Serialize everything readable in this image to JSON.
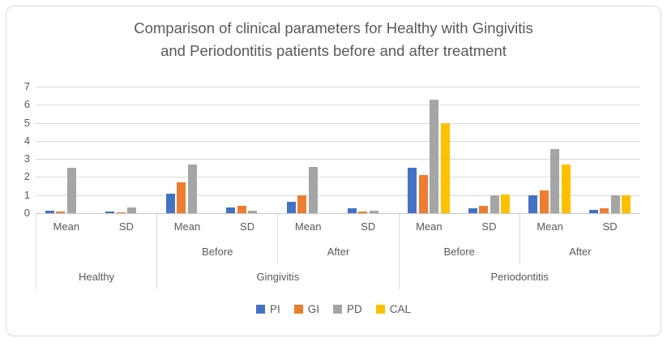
{
  "title_lines": [
    "Comparison of clinical parameters for Healthy with Gingivitis",
    "and Periodontitis patients before and after treatment"
  ],
  "chart_data": {
    "type": "bar",
    "title": "Comparison of clinical parameters for Healthy with Gingivitis and Periodontitis patients before and after treatment",
    "xlabel": "",
    "ylabel": "",
    "y_axis": {
      "min": 0,
      "max": 7,
      "tick_step": 1,
      "tick_labels": [
        "0",
        "1",
        "2",
        "3",
        "4",
        "5",
        "6",
        "7"
      ]
    },
    "grid": true,
    "legend_position": "bottom",
    "category_tree": [
      {
        "label": "Healthy",
        "phases": [
          {
            "label": "",
            "stats": [
              "Mean",
              "SD"
            ]
          }
        ]
      },
      {
        "label": "Gingivitis",
        "phases": [
          {
            "label": "Before",
            "stats": [
              "Mean",
              "SD"
            ]
          },
          {
            "label": "After",
            "stats": [
              "Mean",
              "SD"
            ]
          }
        ]
      },
      {
        "label": "Periodontitis",
        "phases": [
          {
            "label": "Before",
            "stats": [
              "Mean",
              "SD"
            ]
          },
          {
            "label": "After",
            "stats": [
              "Mean",
              "SD"
            ]
          }
        ]
      }
    ],
    "columns": [
      "Healthy Mean",
      "Healthy SD",
      "Gingivitis Before Mean",
      "Gingivitis Before SD",
      "Gingivitis After Mean",
      "Gingivitis After SD",
      "Periodontitis Before Mean",
      "Periodontitis Before SD",
      "Periodontitis After Mean",
      "Periodontitis After SD"
    ],
    "series": [
      {
        "name": "PI",
        "color": "#4472C4",
        "values": [
          0.15,
          0.1,
          1.1,
          0.3,
          0.65,
          0.25,
          2.5,
          0.25,
          1.0,
          0.2
        ]
      },
      {
        "name": "GI",
        "color": "#ED7D31",
        "values": [
          0.1,
          0.05,
          1.7,
          0.4,
          1.0,
          0.1,
          2.1,
          0.4,
          1.25,
          0.25
        ]
      },
      {
        "name": "PD",
        "color": "#A5A5A5",
        "values": [
          2.5,
          0.3,
          2.7,
          0.15,
          2.55,
          0.15,
          6.3,
          1.0,
          3.55,
          1.0
        ]
      },
      {
        "name": "CAL",
        "color": "#FFC000",
        "values": [
          0.0,
          0.0,
          0.0,
          0.0,
          0.0,
          0.0,
          5.0,
          1.05,
          2.7,
          1.0
        ]
      }
    ]
  },
  "colors": {
    "title_text": "#595959",
    "axis_text": "#595959",
    "gridline": "#d9d9d9",
    "frame_border": "#d9d9d9"
  }
}
